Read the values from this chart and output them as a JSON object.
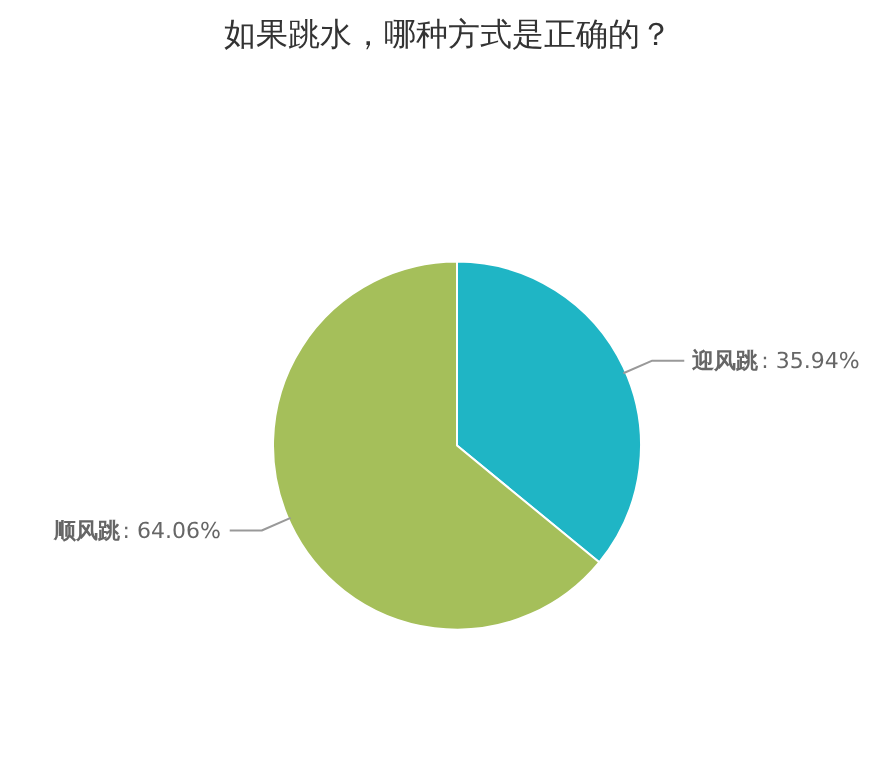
{
  "chart_data": {
    "type": "pie",
    "title": "如果跳水，哪种方式是正确的？",
    "categories": [
      "迎风跳",
      "顺风跳"
    ],
    "values": [
      35.94,
      64.06
    ],
    "value_labels": [
      ": 35.94%",
      ": 64.06%"
    ],
    "colors": [
      "#1fb5c5",
      "#a5bf5a"
    ]
  }
}
